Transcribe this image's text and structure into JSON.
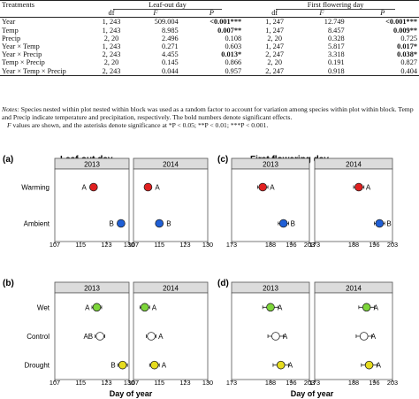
{
  "table": {
    "header": {
      "treatments": "Treatments",
      "group1": "Leaf-out day",
      "group2": "First flowering day",
      "df": "df",
      "F": "F",
      "P": "P"
    },
    "rows": [
      {
        "term": "Year",
        "df1": "1, 243",
        "F1": "509.004",
        "P1": "<0.001***",
        "b1": true,
        "df2": "1, 247",
        "F2": "12.749",
        "P2": "<0.001***",
        "b2": true
      },
      {
        "term": "Temp",
        "df1": "1, 243",
        "F1": "8.985",
        "P1": "0.007**",
        "b1": true,
        "df2": "1, 247",
        "F2": "8.457",
        "P2": "0.009**",
        "b2": true
      },
      {
        "term": "Precip",
        "df1": "2, 20",
        "F1": "2.496",
        "P1": "0.108",
        "b1": false,
        "df2": "2, 20",
        "F2": "0.328",
        "P2": "0.725",
        "b2": false
      },
      {
        "term": "Year × Temp",
        "df1": "1, 243",
        "F1": "0.271",
        "P1": "0.603",
        "b1": false,
        "df2": "1, 247",
        "F2": "5.817",
        "P2": "0.017*",
        "b2": true
      },
      {
        "term": "Year × Precip",
        "df1": "2, 243",
        "F1": "4.455",
        "P1": "0.013*",
        "b1": true,
        "df2": "2, 247",
        "F2": "3.318",
        "P2": "0.038*",
        "b2": true
      },
      {
        "term": "Temp × Precip",
        "df1": "2, 20",
        "F1": "0.145",
        "P1": "0.866",
        "b1": false,
        "df2": "2, 20",
        "F2": "0.191",
        "P2": "0.827",
        "b2": false
      },
      {
        "term": "Year × Temp × Precip",
        "df1": "2, 243",
        "F1": "0.044",
        "P1": "0.957",
        "b1": false,
        "df2": "2, 247",
        "F2": "0.918",
        "P2": "0.404",
        "b2": false
      }
    ]
  },
  "notes": {
    "label": "Notes:",
    "line1": " Species nested within plot nested within block was used as a random factor to account for variation among species within plot within block. Temp and Precip indicate temperature and precipitation, respectively. The bold numbers denote significant effects.",
    "line2_F": "F",
    "line2": " values are shown, and the asterisks denote significance at *P < 0.05; **P < 0.01; ***P < 0.001."
  },
  "figure": {
    "colors": {
      "red": "#e02020",
      "blue": "#1f5fd6",
      "green": "#7dd63a",
      "white": "#ffffff",
      "yellow": "#e6dc1e",
      "strip": "#dcdcdc",
      "panel_border": "#555555"
    },
    "xlabel": "Day of year",
    "years": [
      "2013",
      "2014"
    ]
  },
  "chart_data": [
    {
      "panel": "(a)",
      "type": "scatter",
      "title": "Leaf-out day",
      "categories": [
        "Warming",
        "Ambient"
      ],
      "facets": [
        "2013",
        "2014"
      ],
      "xlim": [
        107,
        130
      ],
      "xticks": [
        107,
        115,
        123,
        130
      ],
      "points": [
        {
          "facet": "2013",
          "category": "Warming",
          "x": 119.0,
          "err": 1.0,
          "letter": "A",
          "letter_side": "left",
          "color": "red"
        },
        {
          "facet": "2013",
          "category": "Ambient",
          "x": 127.5,
          "err": 1.0,
          "letter": "B",
          "letter_side": "left",
          "color": "blue"
        },
        {
          "facet": "2014",
          "category": "Warming",
          "x": 111.5,
          "err": 1.0,
          "letter": "A",
          "letter_side": "right",
          "color": "red"
        },
        {
          "facet": "2014",
          "category": "Ambient",
          "x": 115.0,
          "err": 1.0,
          "letter": "B",
          "letter_side": "right",
          "color": "blue"
        }
      ]
    },
    {
      "panel": "(b)",
      "type": "scatter",
      "title": "",
      "categories": [
        "Wet",
        "Control",
        "Drought"
      ],
      "facets": [
        "2013",
        "2014"
      ],
      "xlim": [
        107,
        130
      ],
      "xticks": [
        107,
        115,
        123,
        130
      ],
      "points": [
        {
          "facet": "2013",
          "category": "Wet",
          "x": 120.0,
          "err": 1.5,
          "letter": "A",
          "letter_side": "left",
          "color": "green"
        },
        {
          "facet": "2013",
          "category": "Control",
          "x": 121.0,
          "err": 1.5,
          "letter": "AB",
          "letter_side": "left",
          "color": "white"
        },
        {
          "facet": "2013",
          "category": "Drought",
          "x": 128.0,
          "err": 1.5,
          "letter": "B",
          "letter_side": "left",
          "color": "yellow"
        },
        {
          "facet": "2014",
          "category": "Wet",
          "x": 110.5,
          "err": 1.5,
          "letter": "A",
          "letter_side": "right",
          "color": "green"
        },
        {
          "facet": "2014",
          "category": "Control",
          "x": 112.5,
          "err": 1.5,
          "letter": "A",
          "letter_side": "right",
          "color": "white"
        },
        {
          "facet": "2014",
          "category": "Drought",
          "x": 113.5,
          "err": 1.5,
          "letter": "A",
          "letter_side": "right",
          "color": "yellow"
        }
      ]
    },
    {
      "panel": "(c)",
      "type": "scatter",
      "title": "First flowering day",
      "categories": [
        "Warming",
        "Ambient"
      ],
      "facets": [
        "2013",
        "2014"
      ],
      "xlim": [
        173,
        203
      ],
      "xticks": [
        173,
        188,
        196,
        203
      ],
      "points": [
        {
          "facet": "2013",
          "category": "Warming",
          "x": 185.0,
          "err": 2.0,
          "letter": "A",
          "letter_side": "right",
          "color": "red"
        },
        {
          "facet": "2013",
          "category": "Ambient",
          "x": 193.0,
          "err": 2.0,
          "letter": "B",
          "letter_side": "right",
          "color": "blue"
        },
        {
          "facet": "2014",
          "category": "Warming",
          "x": 190.0,
          "err": 2.0,
          "letter": "A",
          "letter_side": "right",
          "color": "red"
        },
        {
          "facet": "2014",
          "category": "Ambient",
          "x": 198.0,
          "err": 2.0,
          "letter": "B",
          "letter_side": "right",
          "color": "blue"
        }
      ]
    },
    {
      "panel": "(d)",
      "type": "scatter",
      "title": "",
      "categories": [
        "Wet",
        "Control",
        "Drought"
      ],
      "facets": [
        "2013",
        "2014"
      ],
      "xlim": [
        173,
        203
      ],
      "xticks": [
        173,
        188,
        196,
        203
      ],
      "points": [
        {
          "facet": "2013",
          "category": "Wet",
          "x": 188.0,
          "err": 3.0,
          "letter": "A",
          "letter_side": "right",
          "color": "green"
        },
        {
          "facet": "2013",
          "category": "Control",
          "x": 190.0,
          "err": 3.0,
          "letter": "A",
          "letter_side": "right",
          "color": "white"
        },
        {
          "facet": "2013",
          "category": "Drought",
          "x": 192.0,
          "err": 3.0,
          "letter": "A",
          "letter_side": "right",
          "color": "yellow"
        },
        {
          "facet": "2014",
          "category": "Wet",
          "x": 193.0,
          "err": 3.0,
          "letter": "A",
          "letter_side": "right",
          "color": "green"
        },
        {
          "facet": "2014",
          "category": "Control",
          "x": 192.0,
          "err": 3.0,
          "letter": "A",
          "letter_side": "right",
          "color": "white"
        },
        {
          "facet": "2014",
          "category": "Drought",
          "x": 194.0,
          "err": 3.0,
          "letter": "A",
          "letter_side": "right",
          "color": "yellow"
        }
      ]
    }
  ]
}
